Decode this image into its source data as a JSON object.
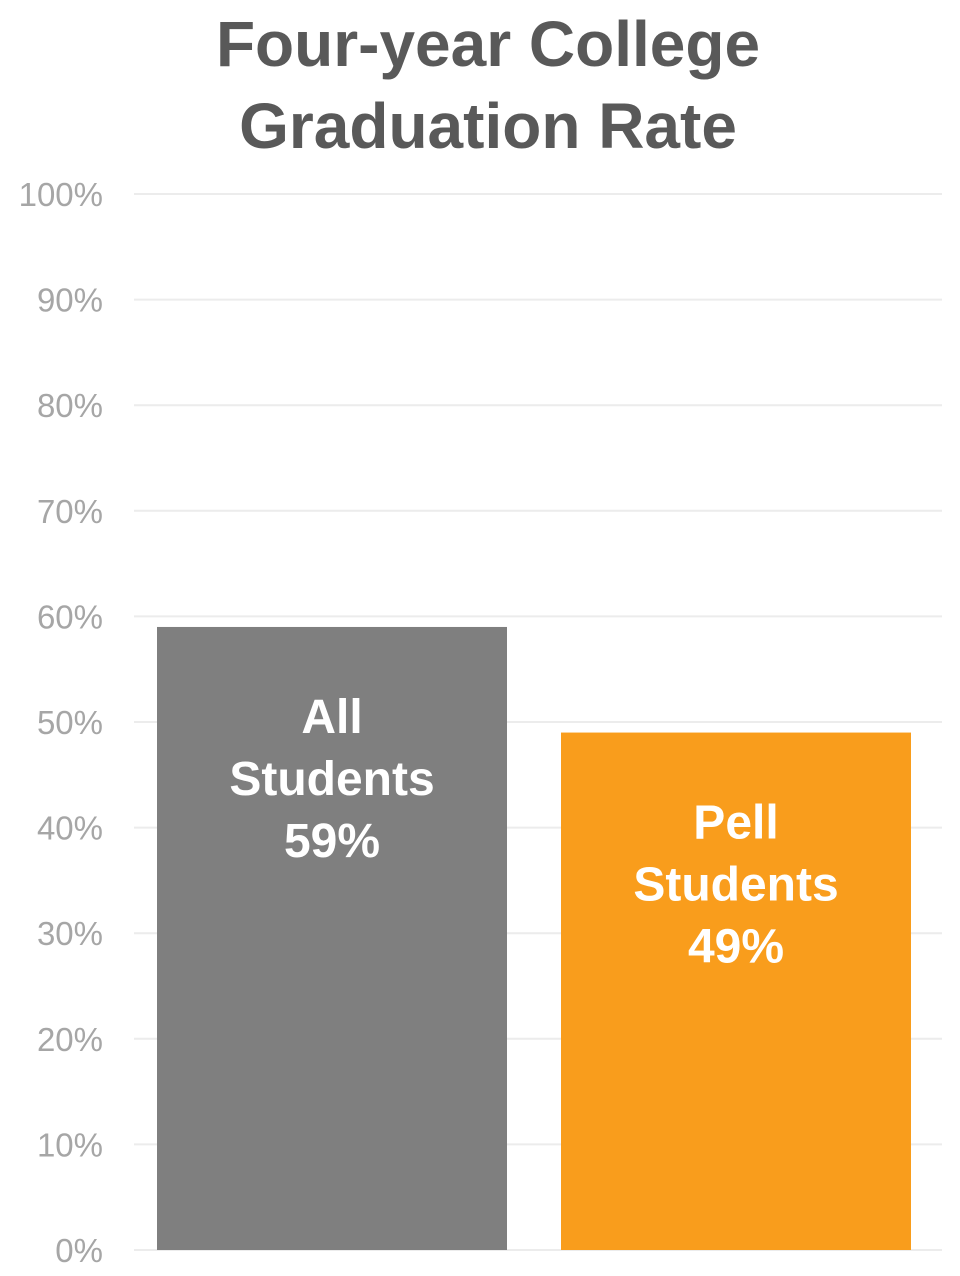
{
  "chart_data": {
    "type": "bar",
    "title": [
      "Four-year College",
      "Graduation Rate"
    ],
    "categories": [
      "All Students",
      "Pell Students"
    ],
    "values": [
      59,
      49
    ],
    "bar_labels": [
      [
        "All",
        "Students",
        "59%"
      ],
      [
        "Pell",
        "Students",
        "49%"
      ]
    ],
    "colors": [
      "#7f7f7f",
      "#f99d1c"
    ],
    "ylim": [
      0,
      100
    ],
    "yticks": [
      0,
      10,
      20,
      30,
      40,
      50,
      60,
      70,
      80,
      90,
      100
    ],
    "ytick_labels": [
      "0%",
      "10%",
      "20%",
      "30%",
      "40%",
      "50%",
      "60%",
      "70%",
      "80%",
      "90%",
      "100%"
    ],
    "grid": true,
    "legend": "none"
  }
}
